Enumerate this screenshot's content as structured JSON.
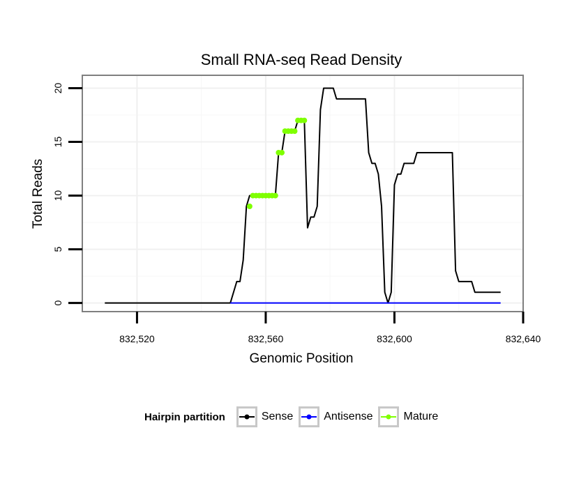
{
  "chart_data": {
    "type": "line",
    "title": "Small RNA-seq Read Density",
    "xlabel": "Genomic Position",
    "ylabel": "Total Reads",
    "xlim": [
      832503,
      832640
    ],
    "ylim": [
      -0.8,
      21.2
    ],
    "x_ticks": [
      832520,
      832560,
      832600,
      832640
    ],
    "x_tick_labels": [
      "832,520",
      "832,560",
      "832,600",
      "832,640"
    ],
    "y_ticks": [
      0,
      5,
      10,
      15,
      20
    ],
    "y_tick_labels": [
      "0",
      "5",
      "10",
      "15",
      "20"
    ],
    "grid": true,
    "legend": {
      "title": "Hairpin partition",
      "placement": "bottom",
      "entries": [
        {
          "label": "Sense",
          "color": "#000000"
        },
        {
          "label": "Antisense",
          "color": "#0000ff"
        },
        {
          "label": "Mature",
          "color": "#7fff00"
        }
      ]
    },
    "series": [
      {
        "name": "Sense",
        "color": "#000000",
        "x": [
          832510,
          832549,
          832550,
          832551,
          832552,
          832553,
          832554,
          832555,
          832556,
          832557,
          832558,
          832559,
          832560,
          832561,
          832562,
          832563,
          832564,
          832565,
          832566,
          832567,
          832568,
          832569,
          832570,
          832571,
          832572,
          832573,
          832574,
          832575,
          832576,
          832577,
          832578,
          832579,
          832580,
          832581,
          832582,
          832583,
          832584,
          832585,
          832586,
          832587,
          832588,
          832589,
          832590,
          832591,
          832592,
          832593,
          832594,
          832595,
          832596,
          832597,
          832598,
          832599,
          832600,
          832601,
          832602,
          832603,
          832604,
          832605,
          832606,
          832607,
          832608,
          832609,
          832610,
          832611,
          832612,
          832613,
          832614,
          832615,
          832616,
          832617,
          832618,
          832619,
          832620,
          832621,
          832622,
          832623,
          832624,
          832625,
          832626,
          832627,
          832628,
          832629,
          832630,
          832631,
          832632,
          832633
        ],
        "y": [
          0,
          0,
          1,
          2,
          2,
          4,
          9,
          10,
          10,
          10,
          10,
          10,
          10,
          10,
          10,
          10,
          14,
          14,
          16,
          16,
          16,
          16,
          17,
          17,
          17,
          7,
          8,
          8,
          9,
          18,
          20,
          20,
          20,
          20,
          19,
          19,
          19,
          19,
          19,
          19,
          19,
          19,
          19,
          19,
          14,
          13,
          13,
          12,
          9,
          1,
          0,
          1,
          11,
          12,
          12,
          13,
          13,
          13,
          13,
          14,
          14,
          14,
          14,
          14,
          14,
          14,
          14,
          14,
          14,
          14,
          14,
          3,
          2,
          2,
          2,
          2,
          2,
          1,
          1,
          1,
          1,
          1,
          1,
          1,
          1,
          1
        ]
      },
      {
        "name": "Antisense",
        "color": "#0000ff",
        "x": [
          832549,
          832633
        ],
        "y": [
          0,
          0
        ]
      },
      {
        "name": "Mature",
        "color": "#7fff00",
        "x": [
          832555,
          832556,
          832557,
          832558,
          832559,
          832560,
          832561,
          832562,
          832563,
          832564,
          832565,
          832566,
          832567,
          832568,
          832569,
          832570,
          832571,
          832572
        ],
        "y": [
          9,
          10,
          10,
          10,
          10,
          10,
          10,
          10,
          10,
          14,
          14,
          16,
          16,
          16,
          16,
          17,
          17,
          17
        ]
      }
    ]
  }
}
